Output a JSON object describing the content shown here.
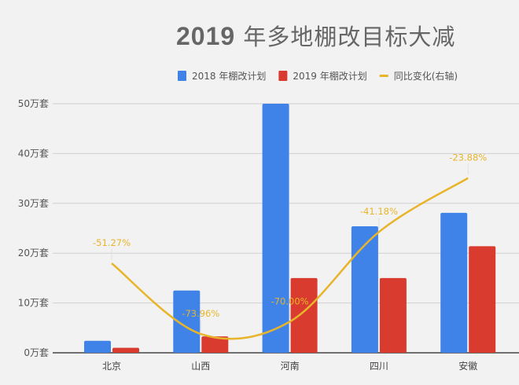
{
  "chart_data": {
    "type": "bar",
    "title": "2019 年多地棚改目标大减",
    "title_year": "2019",
    "title_rest": "年多地棚改目标大减",
    "categories": [
      "北京",
      "山西",
      "河南",
      "四川",
      "安徽"
    ],
    "series": [
      {
        "name": "2018 年棚改计划",
        "type": "bar",
        "color": "#3f83e8",
        "values": [
          2.4,
          12.5,
          50.0,
          25.4,
          28.1
        ]
      },
      {
        "name": "2019 年棚改计划",
        "type": "bar",
        "color": "#d93c2f",
        "values": [
          1.0,
          3.3,
          15.0,
          15.0,
          21.4
        ]
      },
      {
        "name": "同比变化(右轴)",
        "type": "line",
        "axis": "right",
        "color": "#e8b52a",
        "values": [
          -51.27,
          -73.96,
          -70.0,
          -41.18,
          -23.88
        ],
        "labels": [
          "-51.27%",
          "-73.96%",
          "-70.00%",
          "-41.18%",
          "-23.88%"
        ]
      }
    ],
    "y_ticks": [
      "0万套",
      "10万套",
      "20万套",
      "30万套",
      "40万套",
      "50万套"
    ],
    "ylim": [
      0,
      50
    ],
    "y2lim": [
      -80,
      0
    ],
    "grid": true,
    "legend": "top-right"
  }
}
